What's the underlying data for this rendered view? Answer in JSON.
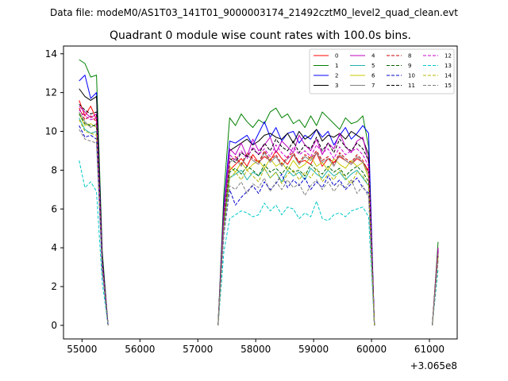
{
  "suptitle": "Data file: modeM0/AS1T03_141T01_9000003174_21492cztM0_level2_quad_clean.evt",
  "chart_data": {
    "type": "line",
    "title": "Quadrant 0 module wise count rates with 100.0s bins.",
    "xlabel": "",
    "ylabel": "",
    "x_offset_label": "+3.065e8",
    "xlim": [
      54680,
      61480
    ],
    "ylim": [
      -0.7,
      14.4
    ],
    "xticks": [
      55000,
      56000,
      57000,
      58000,
      59000,
      60000,
      61000
    ],
    "yticks": [
      0,
      2,
      4,
      6,
      8,
      10,
      12,
      14
    ],
    "grid": false,
    "legend_placement": "top-right",
    "legend_columns": 4,
    "x_segments": [
      [
        54950,
        55050,
        55150,
        55250,
        55350,
        55450
      ],
      [
        57350,
        57450,
        57550,
        57650,
        57750,
        57850,
        57950,
        58050,
        58150,
        58250,
        58350,
        58450,
        58550,
        58650,
        58750,
        58850,
        58950,
        59050,
        59150,
        59250,
        59350,
        59450,
        59550,
        59650,
        59750,
        59850,
        59950,
        60050
      ],
      [
        61050,
        61150
      ]
    ],
    "series": [
      {
        "name": "0",
        "color": "#ff0000",
        "dash": "solid",
        "values": [
          [
            11.6,
            10.8,
            11.3,
            10.6,
            3.2,
            0.0
          ],
          [
            0.0,
            5.5,
            8.0,
            8.3,
            8.6,
            8.2,
            8.8,
            8.4,
            8.7,
            8.5,
            9.0,
            8.6,
            8.3,
            8.8,
            8.4,
            8.5,
            8.3,
            8.9,
            8.2,
            8.6,
            8.4,
            8.7,
            8.5,
            8.3,
            8.6,
            8.4,
            8.0,
            0.0
          ],
          [
            0.0,
            4.0
          ]
        ]
      },
      {
        "name": "1",
        "color": "#008000",
        "dash": "solid",
        "values": [
          [
            13.7,
            13.5,
            12.8,
            12.9,
            3.8,
            0.0
          ],
          [
            0.0,
            6.8,
            10.7,
            10.3,
            10.9,
            10.5,
            10.2,
            10.6,
            10.4,
            11.0,
            11.2,
            10.7,
            10.9,
            10.4,
            10.6,
            10.2,
            10.8,
            10.3,
            11.0,
            10.7,
            10.4,
            10.1,
            10.7,
            10.4,
            10.5,
            10.8,
            9.2,
            0.0
          ],
          [
            0.0,
            4.3
          ]
        ]
      },
      {
        "name": "2",
        "color": "#0000ff",
        "dash": "solid",
        "values": [
          [
            12.6,
            12.9,
            11.7,
            12.0,
            3.5,
            0.0
          ],
          [
            0.0,
            6.2,
            9.5,
            9.4,
            9.6,
            9.8,
            9.3,
            9.9,
            10.5,
            9.7,
            10.2,
            9.5,
            9.9,
            10.0,
            9.4,
            9.8,
            9.6,
            10.1,
            9.7,
            10.0,
            9.3,
            9.8,
            10.2,
            9.6,
            9.9,
            10.3,
            9.9,
            0.0
          ],
          [
            0.0,
            3.9
          ]
        ]
      },
      {
        "name": "3",
        "color": "#000000",
        "dash": "solid",
        "values": [
          [
            12.2,
            11.8,
            11.6,
            11.8,
            3.4,
            0.0
          ],
          [
            0.0,
            6.0,
            9.0,
            9.2,
            9.4,
            9.6,
            9.3,
            9.5,
            9.8,
            9.9,
            9.7,
            9.6,
            9.9,
            9.4,
            10.0,
            9.6,
            9.8,
            10.1,
            9.5,
            9.8,
            9.7,
            9.9,
            9.6,
            10.0,
            9.8,
            9.6,
            8.8,
            0.0
          ],
          [
            0.0,
            3.8
          ]
        ]
      },
      {
        "name": "4",
        "color": "#bf00bf",
        "dash": "solid",
        "values": [
          [
            11.3,
            11.0,
            10.7,
            10.9,
            3.3,
            0.0
          ],
          [
            0.0,
            5.9,
            9.1,
            8.8,
            9.4,
            8.7,
            9.6,
            9.0,
            9.3,
            9.7,
            8.9,
            9.5,
            9.2,
            8.9,
            9.8,
            9.3,
            9.0,
            9.6,
            8.8,
            9.4,
            9.1,
            9.9,
            9.2,
            8.9,
            9.5,
            9.7,
            8.4,
            0.0
          ],
          [
            0.0,
            4.0
          ]
        ]
      },
      {
        "name": "5",
        "color": "#20b2aa",
        "dash": "solid",
        "values": [
          [
            10.7,
            10.1,
            9.9,
            10.0,
            3.0,
            0.0
          ],
          [
            0.0,
            5.1,
            7.6,
            7.8,
            8.0,
            7.5,
            7.9,
            7.7,
            8.1,
            7.6,
            7.9,
            7.4,
            8.0,
            7.7,
            7.9,
            7.5,
            8.1,
            7.8,
            7.6,
            8.0,
            7.7,
            7.9,
            7.5,
            7.8,
            8.0,
            7.6,
            7.2,
            0.0
          ],
          [
            0.0,
            3.6
          ]
        ]
      },
      {
        "name": "6",
        "color": "#c8c800",
        "dash": "solid",
        "values": [
          [
            10.9,
            10.3,
            10.4,
            10.2,
            3.1,
            0.0
          ],
          [
            0.0,
            5.3,
            8.2,
            7.9,
            8.4,
            8.0,
            8.3,
            8.5,
            8.1,
            8.6,
            8.2,
            8.4,
            8.0,
            8.5,
            8.1,
            8.3,
            8.7,
            8.2,
            8.4,
            8.0,
            8.6,
            8.3,
            8.1,
            8.5,
            8.2,
            8.4,
            7.6,
            0.0
          ],
          [
            0.0,
            3.7
          ]
        ]
      },
      {
        "name": "7",
        "color": "#808080",
        "dash": "solid",
        "values": [
          [
            11.0,
            10.5,
            10.2,
            10.4,
            3.1,
            0.0
          ],
          [
            0.0,
            5.4,
            8.4,
            8.6,
            8.2,
            8.8,
            8.5,
            8.3,
            8.9,
            8.4,
            8.7,
            8.2,
            8.6,
            8.8,
            8.3,
            8.7,
            8.5,
            8.9,
            8.4,
            8.6,
            8.2,
            8.8,
            8.5,
            8.3,
            8.7,
            8.4,
            7.8,
            0.0
          ],
          [
            0.0,
            3.7
          ]
        ]
      },
      {
        "name": "8",
        "color": "#cc0000",
        "dash": "dashed",
        "values": [
          [
            11.2,
            10.6,
            10.8,
            10.5,
            3.2,
            0.0
          ],
          [
            0.0,
            5.6,
            8.5,
            8.7,
            8.3,
            8.9,
            8.6,
            8.4,
            9.0,
            8.5,
            8.8,
            8.3,
            8.7,
            8.9,
            8.4,
            8.8,
            8.6,
            9.0,
            8.5,
            8.7,
            8.3,
            8.9,
            8.6,
            8.4,
            8.8,
            8.5,
            7.9,
            0.0
          ],
          [
            0.0,
            3.9
          ]
        ]
      },
      {
        "name": "9",
        "color": "#006400",
        "dash": "dashed",
        "values": [
          [
            10.9,
            10.4,
            10.3,
            10.3,
            3.1,
            0.0
          ],
          [
            0.0,
            5.2,
            7.9,
            8.1,
            7.8,
            8.2,
            8.0,
            7.7,
            8.3,
            7.9,
            8.1,
            7.8,
            8.2,
            7.9,
            8.0,
            7.7,
            8.3,
            8.0,
            7.8,
            8.2,
            7.9,
            8.1,
            7.7,
            8.0,
            8.2,
            7.9,
            7.4,
            0.0
          ],
          [
            0.0,
            3.6
          ]
        ]
      },
      {
        "name": "10",
        "color": "#0000cc",
        "dash": "dashed",
        "values": [
          [
            10.3,
            9.7,
            9.8,
            9.6,
            2.9,
            0.0
          ],
          [
            0.0,
            4.7,
            7.0,
            6.2,
            6.6,
            6.9,
            7.2,
            6.8,
            7.4,
            7.0,
            7.3,
            7.8,
            7.1,
            7.5,
            7.2,
            7.6,
            7.0,
            7.4,
            7.1,
            7.7,
            7.2,
            7.5,
            7.0,
            7.3,
            7.6,
            7.1,
            6.8,
            0.0
          ],
          [
            0.0,
            3.4
          ]
        ]
      },
      {
        "name": "11",
        "color": "#000000",
        "dash": "dashed",
        "values": [
          [
            11.4,
            11.1,
            10.9,
            11.0,
            3.3,
            0.0
          ],
          [
            0.0,
            5.8,
            8.6,
            8.4,
            8.9,
            8.7,
            9.1,
            8.8,
            9.4,
            9.0,
            9.6,
            9.2,
            9.0,
            9.5,
            8.9,
            9.3,
            9.1,
            9.7,
            9.0,
            9.4,
            8.9,
            9.6,
            9.2,
            9.0,
            9.4,
            9.1,
            8.5,
            0.0
          ],
          [
            0.0,
            3.9
          ]
        ]
      },
      {
        "name": "12",
        "color": "#cc00cc",
        "dash": "dashed",
        "values": [
          [
            11.1,
            10.8,
            10.6,
            10.7,
            3.2,
            0.0
          ],
          [
            0.0,
            5.7,
            8.8,
            8.5,
            9.0,
            8.6,
            9.2,
            8.8,
            9.1,
            8.7,
            9.3,
            8.9,
            8.6,
            9.2,
            8.8,
            9.0,
            8.7,
            9.3,
            8.9,
            9.1,
            8.6,
            9.2,
            8.8,
            9.0,
            9.1,
            8.8,
            8.2,
            0.0
          ],
          [
            0.0,
            3.9
          ]
        ]
      },
      {
        "name": "13",
        "color": "#00c8c8",
        "dash": "dashed",
        "values": [
          [
            8.5,
            7.1,
            7.4,
            6.9,
            2.2,
            0.0
          ],
          [
            0.0,
            3.8,
            5.5,
            5.7,
            5.9,
            5.8,
            5.6,
            5.7,
            6.3,
            5.9,
            6.2,
            5.7,
            6.1,
            6.0,
            5.5,
            5.8,
            5.6,
            6.4,
            5.5,
            5.4,
            5.7,
            5.8,
            5.6,
            5.9,
            6.0,
            6.1,
            5.6,
            0.0
          ],
          [
            0.0,
            2.9
          ]
        ]
      },
      {
        "name": "14",
        "color": "#b4b400",
        "dash": "dashed",
        "values": [
          [
            10.6,
            10.0,
            9.9,
            9.8,
            2.9,
            0.0
          ],
          [
            0.0,
            5.0,
            7.6,
            7.9,
            7.5,
            8.0,
            7.7,
            7.4,
            8.1,
            7.6,
            7.9,
            7.3,
            7.8,
            8.0,
            7.5,
            7.9,
            7.6,
            8.1,
            7.4,
            7.8,
            7.5,
            8.0,
            7.6,
            7.3,
            7.9,
            7.7,
            7.2,
            0.0
          ],
          [
            0.0,
            3.5
          ]
        ]
      },
      {
        "name": "15",
        "color": "#808080",
        "dash": "dashed",
        "values": [
          [
            10.1,
            9.6,
            9.5,
            9.4,
            2.8,
            0.0
          ],
          [
            0.0,
            4.8,
            7.2,
            7.0,
            7.4,
            6.8,
            7.3,
            7.1,
            7.6,
            6.9,
            7.4,
            7.0,
            7.5,
            7.1,
            7.3,
            6.7,
            7.2,
            7.5,
            7.0,
            7.4,
            6.9,
            7.3,
            7.1,
            7.5,
            6.8,
            7.2,
            6.6,
            0.0
          ],
          [
            0.0,
            3.3
          ]
        ]
      }
    ]
  }
}
